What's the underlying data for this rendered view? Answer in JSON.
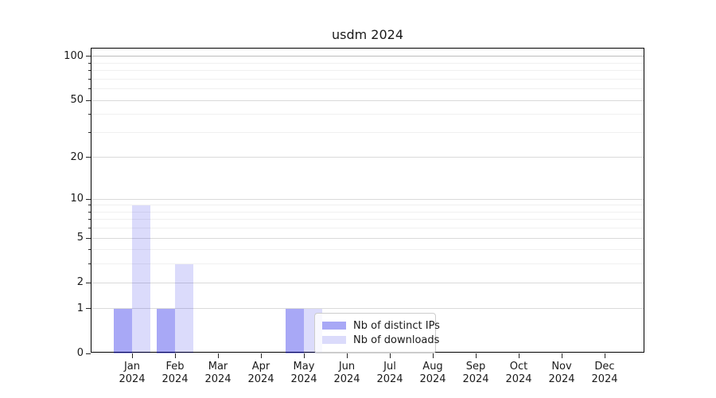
{
  "chart_data": {
    "type": "bar",
    "title": "usdm 2024",
    "xlabel": "",
    "ylabel": "",
    "x_year": "2024",
    "categories": [
      "Jan",
      "Feb",
      "Mar",
      "Apr",
      "May",
      "Jun",
      "Jul",
      "Aug",
      "Sep",
      "Oct",
      "Nov",
      "Dec"
    ],
    "series": [
      {
        "name": "Nb of distinct IPs",
        "color": "rgba(0,0,230,0.34)",
        "values": [
          1,
          1,
          0,
          0,
          1,
          0,
          0,
          0,
          0,
          0,
          0,
          0
        ]
      },
      {
        "name": "Nb of downloads",
        "color": "rgba(0,0,230,0.14)",
        "values": [
          9,
          3,
          0,
          0,
          1,
          0,
          0,
          0,
          0,
          0,
          0,
          0
        ]
      }
    ],
    "y_scale": "log1p",
    "ylim": [
      0,
      113
    ],
    "y_major_ticks": [
      0,
      1,
      2,
      5,
      10,
      20,
      50,
      100
    ],
    "y_minor_ticks": [
      3,
      4,
      6,
      7,
      8,
      9,
      30,
      40,
      60,
      70,
      80,
      90
    ],
    "grid": "horizontal-on",
    "legend_position": "lower-center-inside",
    "style": {
      "grid_major_color": "#dadada",
      "grid_minor_color": "#f0f0f0",
      "grid_top_color": "#bdbdbd",
      "spine_color": "#000000",
      "text_color": "#1a1a1a"
    }
  }
}
